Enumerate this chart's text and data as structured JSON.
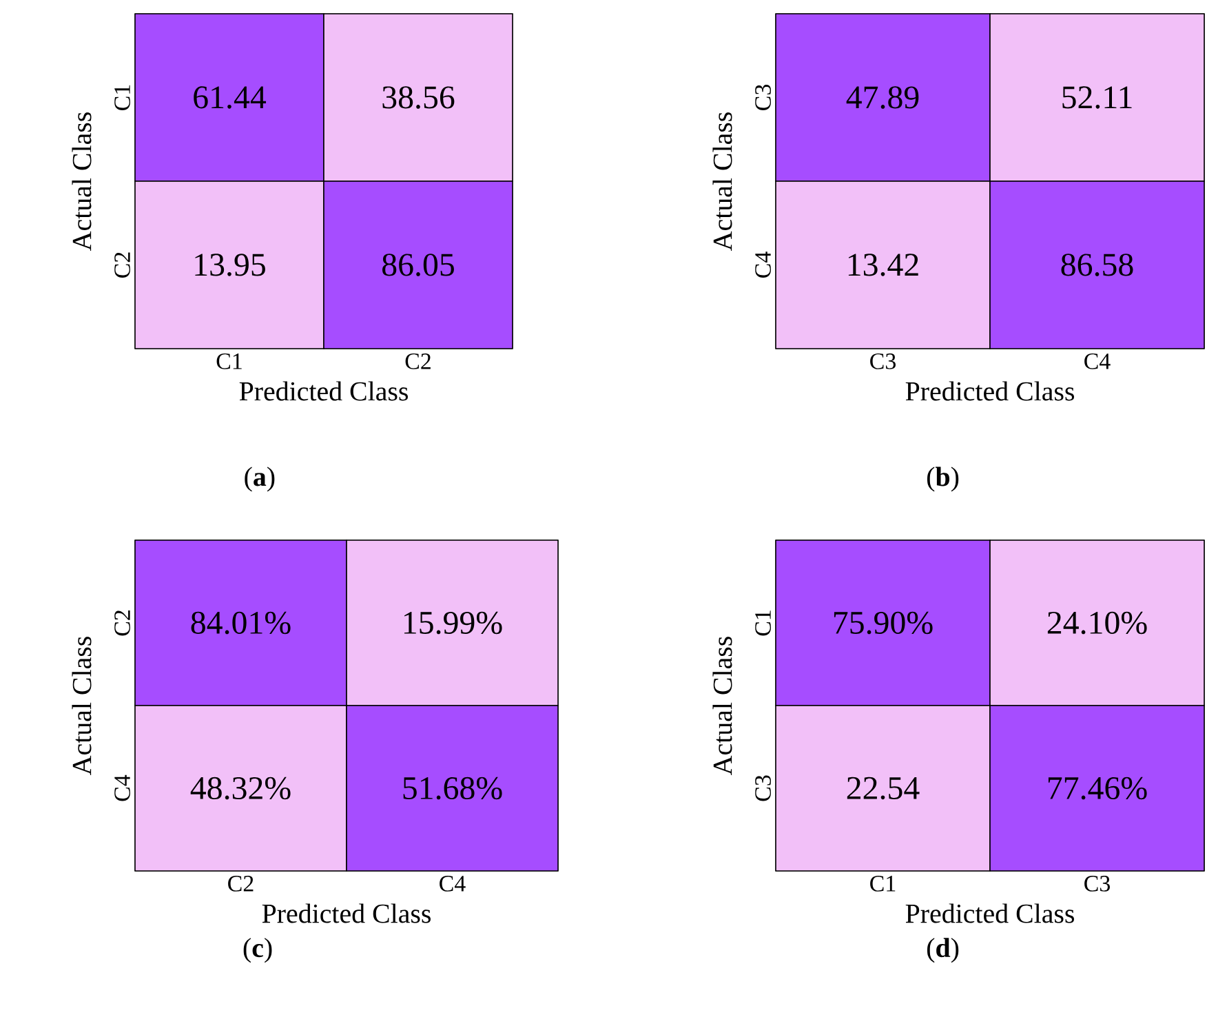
{
  "chart_data": [
    {
      "type": "heatmap",
      "title": "(**a**)",
      "xlabel": "Predicted Class",
      "ylabel": "Actual Class",
      "categories": [
        "C1",
        "C2"
      ],
      "y_categories": [
        "C1",
        "C2"
      ],
      "cells": [
        [
          61.44,
          38.56
        ],
        [
          13.95,
          86.05
        ]
      ],
      "data_labels": true,
      "colors": [
        [
          "#a64dff",
          "#f2c0f8"
        ],
        [
          "#f2c0f8",
          "#a64dff"
        ]
      ]
    },
    {
      "type": "heatmap",
      "title": "(**b**)",
      "xlabel": "Predicted Class",
      "ylabel": "Actual Class",
      "categories": [
        "C3",
        "C4"
      ],
      "y_categories": [
        "C3",
        "C4"
      ],
      "cells": [
        [
          47.89,
          52.11
        ],
        [
          13.42,
          86.58
        ]
      ],
      "data_labels": true,
      "colors": [
        [
          "#a64dff",
          "#f2c0f8"
        ],
        [
          "#f2c0f8",
          "#a64dff"
        ]
      ]
    },
    {
      "type": "heatmap",
      "title": "(**c**)",
      "xlabel": "Predicted Class",
      "ylabel": "Actual Class",
      "categories": [
        "C2",
        "C4"
      ],
      "y_categories": [
        "C2",
        "C4"
      ],
      "cells": [
        [
          84.01,
          15.99
        ],
        [
          48.32,
          51.68
        ]
      ],
      "cell_labels": [
        [
          "84.01%",
          "15.99%"
        ],
        [
          "48.32%",
          "51.68%"
        ]
      ],
      "colors": [
        [
          "#a64dff",
          "#f2c0f8"
        ],
        [
          "#f2c0f8",
          "#a64dff"
        ]
      ]
    },
    {
      "type": "heatmap",
      "title": "(**d**)",
      "xlabel": "Predicted Class",
      "ylabel": "Actual Class",
      "categories": [
        "C1",
        "C3"
      ],
      "y_categories": [
        "C1",
        "C3"
      ],
      "cells": [
        [
          75.9,
          24.1
        ],
        [
          22.54,
          77.46
        ]
      ],
      "cell_labels": [
        [
          "75.90%",
          "24.10%"
        ],
        [
          "22.54",
          "77.46%"
        ]
      ],
      "colors": [
        [
          "#a64dff",
          "#f2c0f8"
        ],
        [
          "#f2c0f8",
          "#a64dff"
        ]
      ]
    }
  ]
}
